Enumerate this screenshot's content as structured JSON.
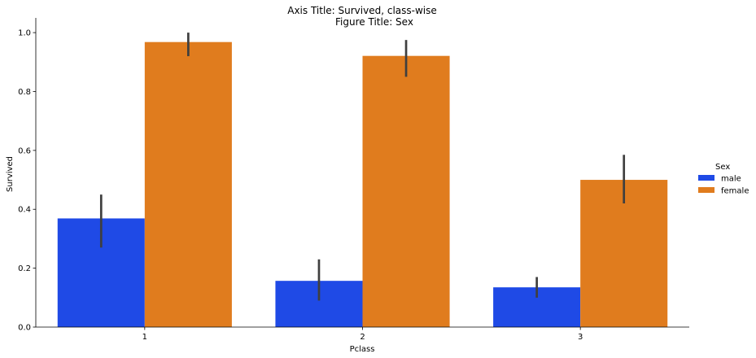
{
  "figure_title_lines": [
    "Axis Title: Survived, class-wise",
    "Figure Title: Sex"
  ],
  "chart_data": {
    "type": "bar",
    "title": "Axis Title: Survived, class-wise\nFigure Title: Sex",
    "xlabel": "Pclass",
    "ylabel": "Survived",
    "categories": [
      "1",
      "2",
      "3"
    ],
    "ylim": [
      0,
      1.05
    ],
    "yticks": [
      0.0,
      0.2,
      0.4,
      0.6,
      0.8,
      1.0
    ],
    "ytick_labels": [
      "0.0",
      "0.2",
      "0.4",
      "0.6",
      "0.8",
      "1.0"
    ],
    "grid": false,
    "legend": {
      "title": "Sex",
      "placement": "right outside",
      "entries": [
        "male",
        "female"
      ]
    },
    "series": [
      {
        "name": "male",
        "color": "#1f4ae6",
        "values": [
          0.369,
          0.157,
          0.135
        ],
        "ci_low": [
          0.27,
          0.09,
          0.1
        ],
        "ci_high": [
          0.45,
          0.23,
          0.17
        ]
      },
      {
        "name": "female",
        "color": "#e07c1e",
        "values": [
          0.968,
          0.921,
          0.5
        ],
        "ci_low": [
          0.92,
          0.85,
          0.42
        ],
        "ci_high": [
          1.0,
          0.975,
          0.585
        ]
      }
    ],
    "errorbar_color": "#3f3f3f"
  }
}
